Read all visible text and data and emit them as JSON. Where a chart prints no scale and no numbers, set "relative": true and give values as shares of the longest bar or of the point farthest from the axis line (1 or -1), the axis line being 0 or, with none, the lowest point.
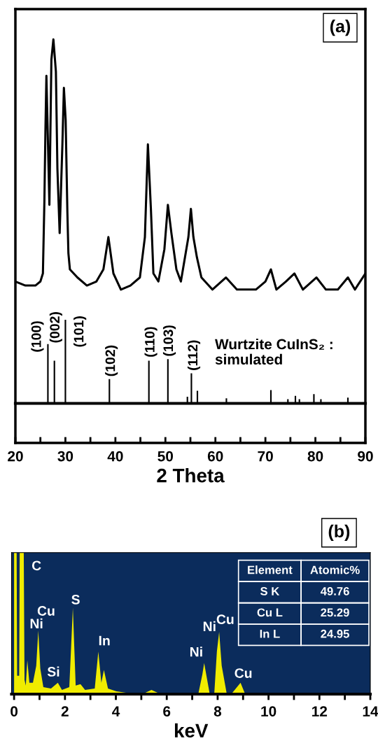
{
  "chart_data": [
    {
      "type": "line",
      "relative": true,
      "xlabel": "2 Theta",
      "xlim": [
        20,
        90
      ],
      "xticks": [
        20,
        {
          "value": 25,
          "label": null
        },
        30,
        {
          "value": 35,
          "label": null
        },
        40,
        {
          "value": 45,
          "label": null
        },
        50,
        {
          "value": 55,
          "label": null
        },
        60,
        {
          "value": 65,
          "label": null
        },
        70,
        {
          "value": 75,
          "label": null
        },
        80,
        {
          "value": 85,
          "label": null
        },
        90
      ],
      "tick_labels": "x",
      "series": [
        {
          "color": "#000000",
          "x": [
            20,
            22,
            24,
            25,
            25.5,
            25.8,
            26.0,
            26.2,
            26.8,
            27.2,
            27.6,
            28.1,
            28.4,
            28.85,
            29.4,
            29.7,
            30.05,
            30.4,
            30.6,
            30.9,
            32.4,
            34.3,
            36.2,
            37.6,
            38.6,
            39.6,
            41.1,
            43.0,
            44.9,
            45.9,
            46.5,
            47.1,
            47.6,
            48.6,
            49.8,
            50.5,
            51.2,
            52.2,
            53.1,
            54.6,
            55.1,
            55.6,
            56.3,
            57.2,
            59.4,
            62.1,
            64.3,
            68.1,
            70.0,
            71.1,
            72.2,
            74.1,
            75.8,
            77.5,
            80.2,
            82.1,
            84.5,
            86.5,
            87.9,
            90
          ],
          "values": [
            0.4,
            0.39,
            0.39,
            0.4,
            0.42,
            0.6,
            0.77,
            0.91,
            0.59,
            0.95,
            1.0,
            0.92,
            0.68,
            0.52,
            0.74,
            0.88,
            0.8,
            0.57,
            0.47,
            0.43,
            0.41,
            0.39,
            0.4,
            0.43,
            0.51,
            0.42,
            0.38,
            0.39,
            0.41,
            0.51,
            0.74,
            0.58,
            0.42,
            0.4,
            0.48,
            0.59,
            0.52,
            0.43,
            0.4,
            0.51,
            0.58,
            0.51,
            0.46,
            0.41,
            0.38,
            0.41,
            0.38,
            0.38,
            0.4,
            0.43,
            0.38,
            0.4,
            0.42,
            0.38,
            0.41,
            0.38,
            0.38,
            0.41,
            0.38,
            0.42
          ]
        }
      ],
      "annotations": [
        "(a)"
      ]
    },
    {
      "type": "bar",
      "relative": true,
      "xlim": [
        20,
        90
      ],
      "tick_labels": false,
      "series": [
        {
          "color": "#000000",
          "x": [
            26.5,
            27.8,
            30.0,
            38.8,
            46.7,
            50.5,
            54.4,
            55.2,
            56.4,
            62.2,
            71.1,
            74.5,
            76.0,
            76.8,
            79.7,
            81.1,
            86.5
          ],
          "values": [
            0.71,
            0.51,
            1.0,
            0.29,
            0.51,
            0.53,
            0.08,
            0.36,
            0.15,
            0.06,
            0.16,
            0.05,
            0.09,
            0.05,
            0.11,
            0.05,
            0.07
          ]
        }
      ],
      "annotations": [
        "(100)",
        "(002)",
        "(101)",
        "(102)",
        "(110)",
        "(103)",
        "(112)",
        "Wurtzite CuInS₂ :\nsimulated"
      ]
    },
    {
      "type": "area",
      "relative": true,
      "xlabel": "keV",
      "xlim": [
        -0.1,
        14
      ],
      "xticks": [
        0,
        {
          "value": 1,
          "label": null
        },
        2,
        {
          "value": 3,
          "label": null
        },
        4,
        {
          "value": 5,
          "label": null
        },
        6,
        {
          "value": 7,
          "label": null
        },
        8,
        {
          "value": 9,
          "label": null
        },
        10,
        {
          "value": 11,
          "label": null
        },
        12,
        {
          "value": 13,
          "label": null
        },
        14
      ],
      "tick_labels": "x",
      "series": [
        {
          "color": "#f0ec00",
          "x": [
            0,
            0.1,
            0.12,
            0.2,
            0.22,
            0.38,
            0.41,
            0.46,
            0.52,
            0.6,
            0.74,
            0.87,
            0.95,
            1.03,
            1.15,
            1.45,
            1.72,
            1.88,
            2.17,
            2.31,
            2.42,
            2.61,
            2.79,
            3.17,
            3.31,
            3.43,
            3.53,
            3.69,
            4.02,
            4.4,
            5.16,
            5.4,
            5.64,
            7.25,
            7.4,
            7.47,
            7.59,
            7.68,
            7.87,
            7.97,
            8.06,
            8.16,
            8.35,
            8.58,
            8.9,
            9.06,
            9.91,
            14.0
          ],
          "values": [
            1.0,
            1.0,
            0.13,
            0.13,
            1.0,
            1.0,
            0.1,
            0.06,
            0.24,
            0.08,
            0.08,
            0.2,
            0.45,
            0.18,
            0.05,
            0.04,
            0.08,
            0.03,
            0.05,
            0.61,
            0.06,
            0.07,
            0.03,
            0.04,
            0.3,
            0.08,
            0.17,
            0.04,
            0.02,
            0.01,
            0.01,
            0.03,
            0.01,
            0.01,
            0.14,
            0.22,
            0.1,
            0.01,
            0.01,
            0.3,
            0.44,
            0.2,
            0.01,
            0.01,
            0.08,
            0.01,
            0,
            0
          ]
        }
      ],
      "annotations": [
        "(b)",
        "C",
        "Cu",
        "Ni",
        "Si",
        "S",
        "In",
        "Ni",
        "Ni",
        "Cu",
        "Cu"
      ]
    },
    {
      "type": "other",
      "annotations": [
        "Element",
        "Atomic%",
        "S K",
        "49.76",
        "Cu L",
        "25.29",
        "In L",
        "24.95"
      ]
    }
  ]
}
